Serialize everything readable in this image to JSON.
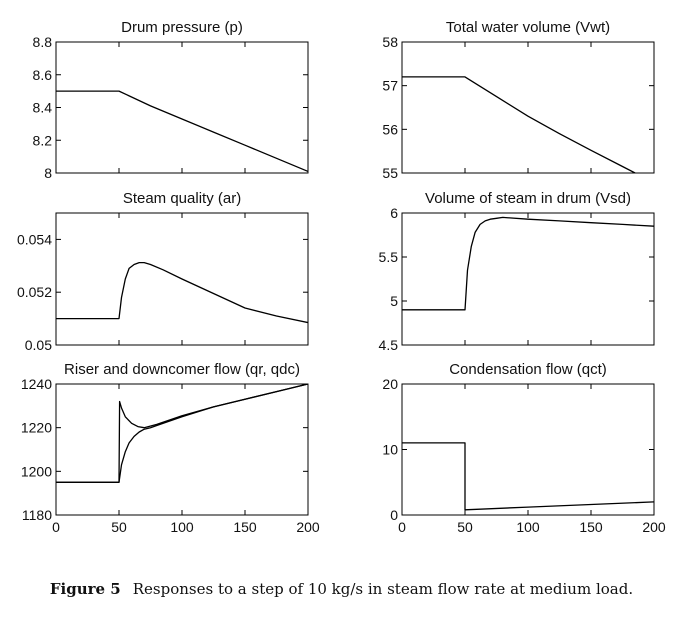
{
  "figure": {
    "label": "Figure 5",
    "caption": "Responses to a step of 10 kg/s in steam flow rate at medium load."
  },
  "chart_data": [
    {
      "type": "line",
      "title": "Drum pressure (p)",
      "xlabel": "",
      "ylabel": "",
      "xlim": [
        0,
        200
      ],
      "ylim": [
        8,
        8.8
      ],
      "xticks": [],
      "yticks": [
        8,
        8.2,
        8.4,
        8.6,
        8.8
      ],
      "ytick_labels": [
        "8",
        "8.2",
        "8.4",
        "8.6",
        "8.8"
      ],
      "series": [
        {
          "name": "p",
          "x": [
            0,
            50,
            75,
            100,
            125,
            150,
            175,
            200
          ],
          "y": [
            8.5,
            8.5,
            8.41,
            8.33,
            8.25,
            8.17,
            8.09,
            8.01
          ]
        }
      ]
    },
    {
      "type": "line",
      "title": "Total water volume (Vwt)",
      "xlabel": "",
      "ylabel": "",
      "xlim": [
        0,
        200
      ],
      "ylim": [
        55,
        58
      ],
      "xticks": [],
      "yticks": [
        55,
        56,
        57,
        58
      ],
      "ytick_labels": [
        "55",
        "56",
        "57",
        "58"
      ],
      "series": [
        {
          "name": "Vwt",
          "x": [
            0,
            50,
            75,
            100,
            125,
            150,
            175,
            185
          ],
          "y": [
            57.2,
            57.2,
            56.75,
            56.3,
            55.9,
            55.52,
            55.15,
            55
          ]
        }
      ]
    },
    {
      "type": "line",
      "title": "Steam quality (ar)",
      "xlabel": "",
      "ylabel": "",
      "xlim": [
        0,
        200
      ],
      "ylim": [
        0.05,
        0.055
      ],
      "xticks": [],
      "yticks": [
        0.05,
        0.052,
        0.054
      ],
      "ytick_labels": [
        "0.05",
        "0.052",
        "0.054"
      ],
      "series": [
        {
          "name": "ar",
          "x": [
            0,
            50,
            52,
            55,
            58,
            62,
            66,
            70,
            75,
            85,
            100,
            125,
            150,
            175,
            200
          ],
          "y": [
            0.051,
            0.051,
            0.0518,
            0.0525,
            0.0529,
            0.05305,
            0.05312,
            0.05312,
            0.05305,
            0.05285,
            0.0525,
            0.05195,
            0.0514,
            0.0511,
            0.05085
          ]
        }
      ]
    },
    {
      "type": "line",
      "title": "Volume of steam in drum (Vsd)",
      "xlabel": "",
      "ylabel": "",
      "xlim": [
        0,
        200
      ],
      "ylim": [
        4.5,
        6
      ],
      "xticks": [],
      "yticks": [
        4.5,
        5,
        5.5,
        6
      ],
      "ytick_labels": [
        "4.5",
        "5",
        "5.5",
        "6"
      ],
      "series": [
        {
          "name": "Vsd",
          "x": [
            0,
            50,
            52,
            55,
            58,
            62,
            66,
            70,
            75,
            80,
            100,
            125,
            150,
            175,
            200
          ],
          "y": [
            4.9,
            4.9,
            5.35,
            5.62,
            5.78,
            5.87,
            5.91,
            5.93,
            5.94,
            5.95,
            5.93,
            5.91,
            5.89,
            5.87,
            5.85
          ]
        }
      ]
    },
    {
      "type": "line",
      "title": "Riser and downcomer flow (qr, qdc)",
      "xlabel": "",
      "ylabel": "",
      "xlim": [
        0,
        200
      ],
      "ylim": [
        1180,
        1240
      ],
      "xticks": [
        0,
        50,
        100,
        150,
        200
      ],
      "yticks": [
        1180,
        1200,
        1220,
        1240
      ],
      "xtick_labels": [
        "0",
        "50",
        "100",
        "150",
        "200"
      ],
      "ytick_labels": [
        "1180",
        "1200",
        "1220",
        "1240"
      ],
      "series": [
        {
          "name": "qr",
          "x": [
            0,
            50,
            50.5,
            52,
            55,
            60,
            65,
            70,
            80,
            100,
            125,
            150,
            175,
            200
          ],
          "y": [
            1195,
            1195,
            1232,
            1229,
            1225,
            1222,
            1220.5,
            1220,
            1221.5,
            1225.5,
            1229.5,
            1233,
            1236.5,
            1240
          ]
        },
        {
          "name": "qdc",
          "x": [
            0,
            50,
            52,
            55,
            58,
            62,
            66,
            70,
            75,
            80,
            100,
            125,
            150,
            175,
            200
          ],
          "y": [
            1195,
            1195,
            1203,
            1209,
            1213,
            1216,
            1218,
            1219.3,
            1220,
            1221,
            1225,
            1229.5,
            1233,
            1236.5,
            1240
          ]
        }
      ]
    },
    {
      "type": "line",
      "title": "Condensation flow (qct)",
      "xlabel": "",
      "ylabel": "",
      "xlim": [
        0,
        200
      ],
      "ylim": [
        0,
        20
      ],
      "xticks": [
        0,
        50,
        100,
        150,
        200
      ],
      "yticks": [
        0,
        10,
        20
      ],
      "xtick_labels": [
        "0",
        "50",
        "100",
        "150",
        "200"
      ],
      "ytick_labels": [
        "0",
        "10",
        "20"
      ],
      "series": [
        {
          "name": "qct",
          "x": [
            0,
            50,
            50,
            100,
            150,
            200
          ],
          "y": [
            11,
            11,
            0.8,
            1.2,
            1.6,
            2.0
          ]
        }
      ]
    }
  ]
}
